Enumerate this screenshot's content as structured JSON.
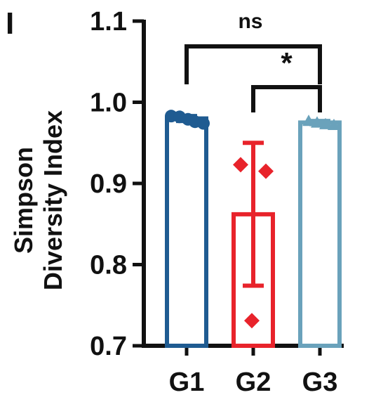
{
  "panel_label": "I",
  "chart_data": {
    "type": "bar",
    "ylabel": [
      "Simpson",
      "Diversity Index"
    ],
    "ylim": [
      0.7,
      1.1
    ],
    "yticks": [
      0.7,
      0.8,
      0.9,
      1.0,
      1.1
    ],
    "ytick_labels": [
      "0.7",
      "0.8",
      "0.9",
      "1.0",
      "1.1"
    ],
    "categories": [
      "G1",
      "G2",
      "G3"
    ],
    "values": [
      0.98,
      0.862,
      0.975
    ],
    "errors": [
      0.003,
      0.088,
      0.002
    ],
    "points": [
      [
        0.983,
        0.982,
        0.979,
        0.976,
        0.974
      ],
      [
        0.923,
        0.915,
        0.731
      ],
      [
        0.977,
        0.975,
        0.973,
        0.972
      ]
    ],
    "colors": [
      "#1f5b91",
      "#e8232b",
      "#6aa2bb"
    ],
    "comparisons": [
      {
        "groups": [
          "G1",
          "G3"
        ],
        "label": "ns"
      },
      {
        "groups": [
          "G2",
          "G3"
        ],
        "label": "*"
      }
    ]
  }
}
